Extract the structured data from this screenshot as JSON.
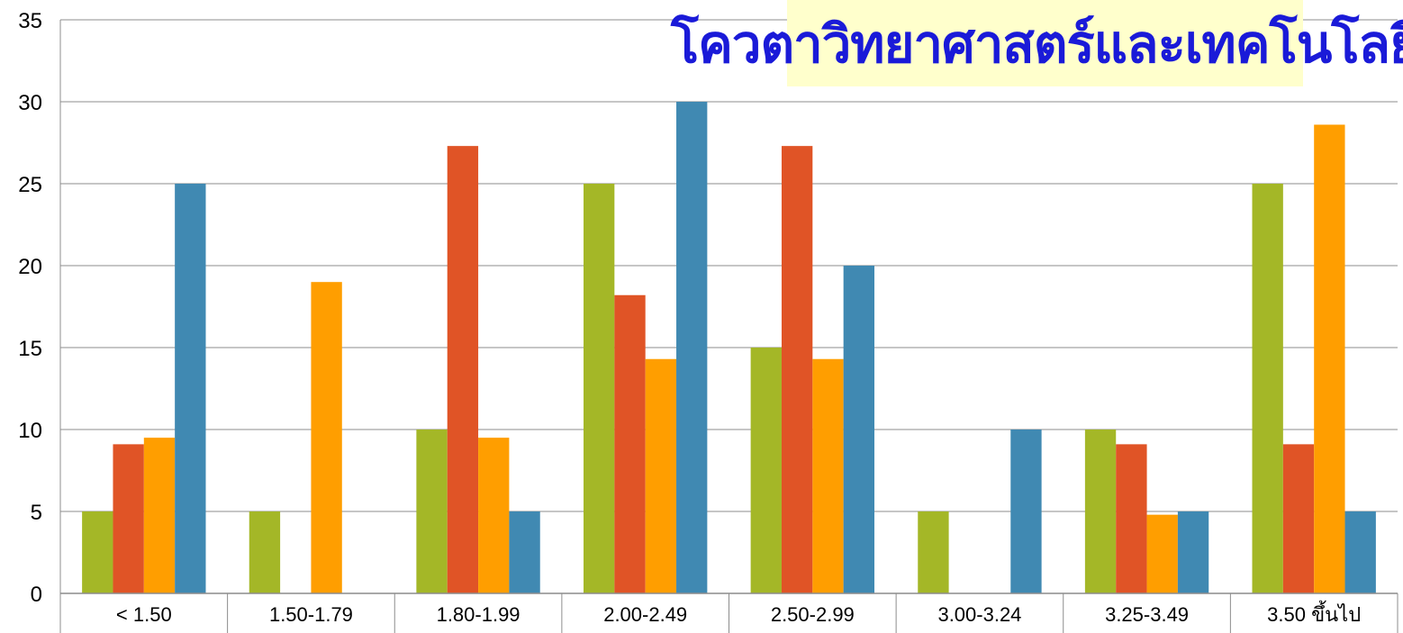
{
  "chart_data": {
    "type": "bar",
    "title": "โควตาวิทยาศาสตร์และเทคโนโลยี",
    "categories": [
      "< 1.50",
      "1.50-1.79",
      "1.80-1.99",
      "2.00-2.49",
      "2.50-2.99",
      "3.00-3.24",
      "3.25-3.49",
      "3.50  ขึ้นไป"
    ],
    "series": [
      {
        "color": "#a4b727",
        "values": [
          5,
          5,
          10,
          25,
          15,
          5,
          10,
          25
        ]
      },
      {
        "color": "#e05426",
        "values": [
          9.1,
          0,
          27.3,
          18.2,
          27.3,
          0,
          9.1,
          9.1
        ]
      },
      {
        "color": "#ff9e00",
        "values": [
          9.5,
          19.0,
          9.5,
          14.3,
          14.3,
          0,
          4.8,
          28.6
        ]
      },
      {
        "color": "#4089b2",
        "values": [
          25,
          0,
          5,
          30,
          20,
          10,
          5,
          5
        ]
      }
    ],
    "yticks": [
      "0",
      "5",
      "10",
      "15",
      "20",
      "25",
      "30",
      "35"
    ],
    "ylim": [
      0,
      35
    ],
    "grid": true,
    "legend": "none",
    "title_background": "#ffffcc",
    "title_color": "#1a1ad8"
  }
}
